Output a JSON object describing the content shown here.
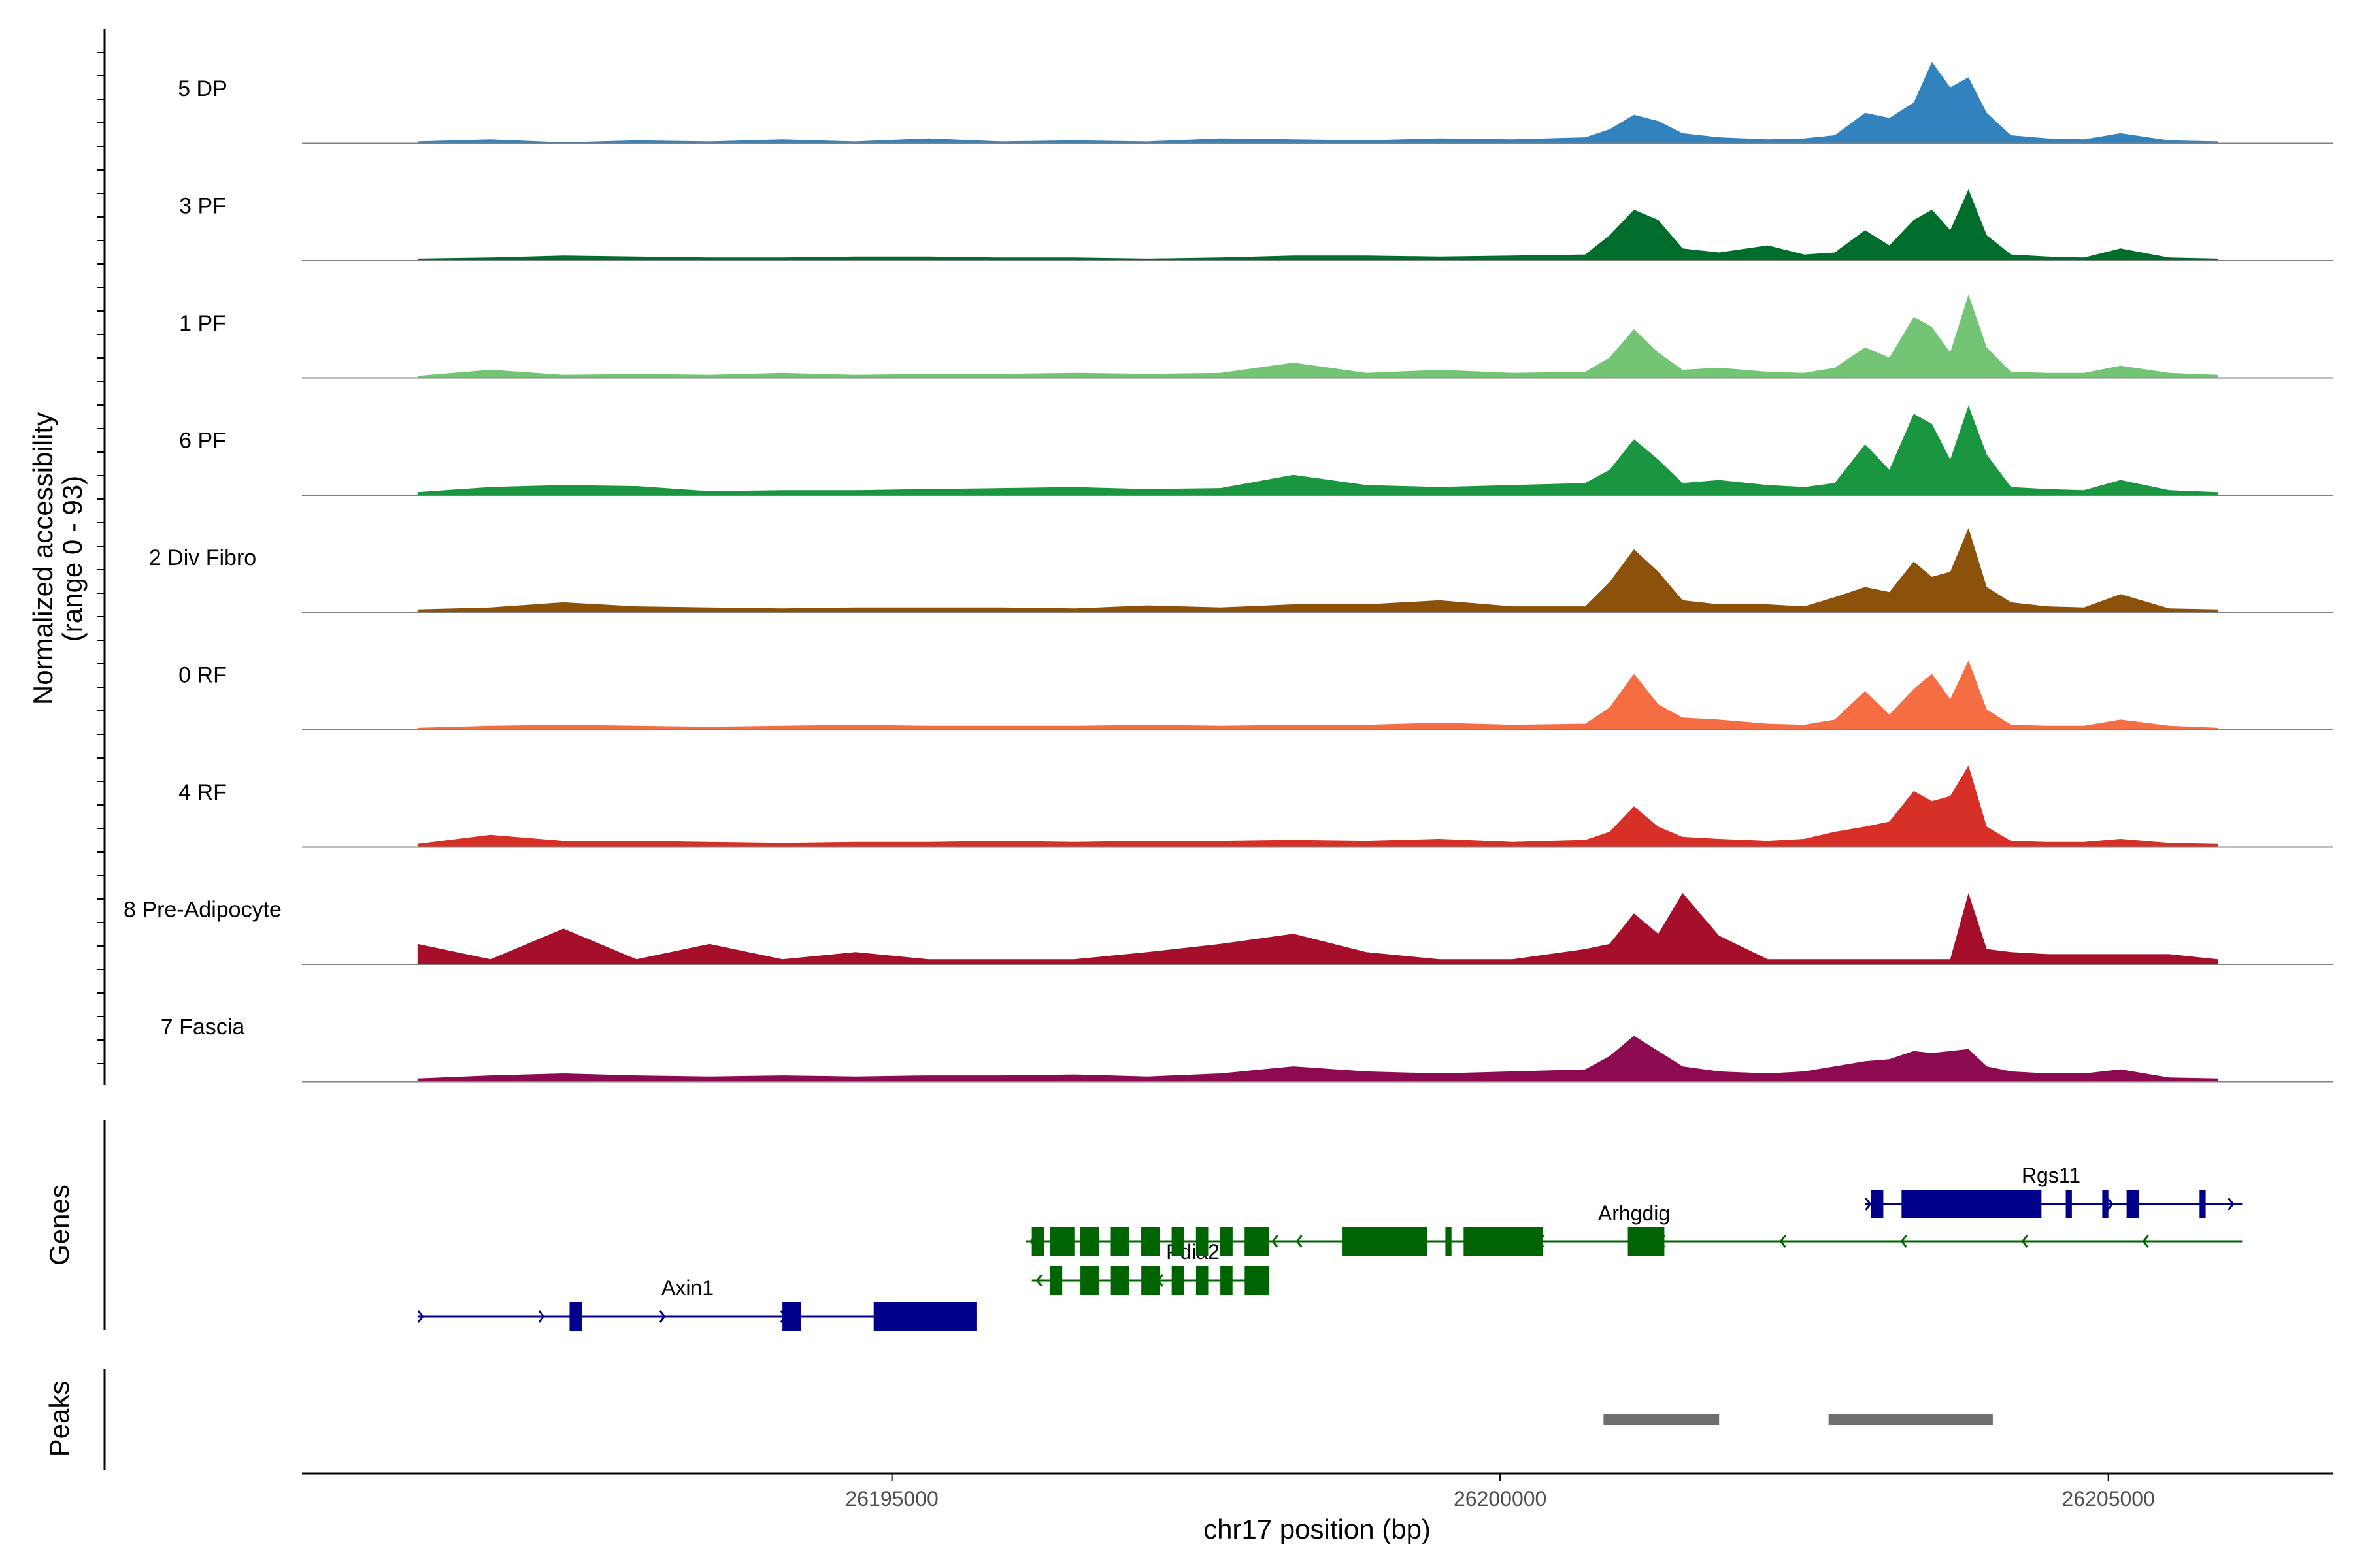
{
  "chart_data": {
    "type": "area",
    "title": "",
    "xlabel": "chr17 position (bp)",
    "ylabel": "Normalized accessibility\n(range 0 - 93)",
    "ylabel_line1": "Normalized accessibility",
    "ylabel_line2": "(range 0 - 93)",
    "ylim": [
      0,
      93
    ],
    "xlim": [
      26190150,
      26206850
    ],
    "x_ticks": [
      26195000,
      26200000,
      26205000
    ],
    "x_tick_labels": [
      "26195000",
      "26200000",
      "26205000"
    ],
    "x_profile": [
      26191100,
      26191700,
      26192300,
      26192900,
      26193500,
      26194100,
      26194700,
      26195300,
      26195900,
      26196500,
      26197100,
      26197700,
      26198300,
      26198900,
      26199500,
      26200100,
      26200700,
      26200900,
      26201100,
      26201300,
      26201500,
      26201800,
      26202200,
      26202500,
      26202750,
      26203000,
      26203200,
      26203400,
      26203550,
      26203700,
      26203850,
      26204000,
      26204200,
      26204500,
      26204800,
      26205100,
      26205500,
      26205900
    ],
    "series": [
      {
        "name": "5 DP",
        "color": "#3182bd",
        "values": [
          2,
          4,
          1,
          3,
          2,
          4,
          2,
          5,
          2,
          3,
          2,
          5,
          4,
          3,
          5,
          4,
          6,
          14,
          28,
          22,
          10,
          6,
          4,
          5,
          8,
          30,
          25,
          40,
          80,
          55,
          65,
          30,
          8,
          5,
          4,
          10,
          3,
          2
        ]
      },
      {
        "name": "3 PF",
        "color": "#006d2c",
        "values": [
          2,
          3,
          5,
          4,
          3,
          3,
          4,
          4,
          3,
          3,
          2,
          3,
          5,
          5,
          4,
          5,
          6,
          25,
          50,
          40,
          12,
          8,
          15,
          6,
          8,
          30,
          15,
          40,
          50,
          30,
          70,
          25,
          6,
          4,
          3,
          12,
          3,
          2
        ]
      },
      {
        "name": "1 PF",
        "color": "#74c476",
        "values": [
          2,
          8,
          3,
          4,
          3,
          5,
          3,
          4,
          4,
          5,
          4,
          5,
          15,
          5,
          8,
          5,
          6,
          20,
          48,
          25,
          8,
          10,
          6,
          5,
          10,
          30,
          20,
          60,
          50,
          25,
          82,
          30,
          6,
          5,
          5,
          12,
          5,
          3
        ]
      },
      {
        "name": "6 PF",
        "color": "#1a9641",
        "values": [
          3,
          8,
          10,
          9,
          4,
          5,
          5,
          6,
          7,
          8,
          6,
          7,
          20,
          10,
          8,
          10,
          12,
          25,
          55,
          35,
          12,
          15,
          10,
          8,
          12,
          50,
          25,
          80,
          70,
          35,
          88,
          40,
          8,
          6,
          5,
          15,
          5,
          3
        ]
      },
      {
        "name": "2 Div Fibro",
        "color": "#8c510a",
        "values": [
          3,
          5,
          10,
          6,
          5,
          4,
          5,
          5,
          5,
          4,
          7,
          5,
          8,
          8,
          12,
          6,
          6,
          30,
          62,
          40,
          12,
          8,
          8,
          6,
          15,
          25,
          20,
          50,
          35,
          40,
          83,
          25,
          10,
          6,
          5,
          18,
          4,
          3
        ]
      },
      {
        "name": "0 RF",
        "color": "#f46d43",
        "values": [
          2,
          4,
          5,
          4,
          3,
          4,
          5,
          4,
          4,
          4,
          5,
          4,
          5,
          5,
          7,
          5,
          6,
          22,
          55,
          25,
          12,
          10,
          6,
          5,
          10,
          38,
          15,
          40,
          55,
          30,
          68,
          20,
          5,
          4,
          4,
          10,
          4,
          2
        ]
      },
      {
        "name": "4 RF",
        "color": "#d73027",
        "values": [
          3,
          12,
          6,
          6,
          5,
          4,
          5,
          5,
          6,
          5,
          6,
          6,
          7,
          6,
          8,
          5,
          7,
          15,
          40,
          20,
          10,
          8,
          6,
          8,
          15,
          20,
          25,
          55,
          45,
          50,
          80,
          20,
          6,
          5,
          5,
          8,
          4,
          3
        ]
      },
      {
        "name": "8 Pre-Adipocyte",
        "color": "#a50f2a",
        "values": [
          20,
          5,
          35,
          5,
          20,
          5,
          12,
          5,
          5,
          5,
          12,
          20,
          30,
          12,
          5,
          5,
          15,
          20,
          50,
          30,
          70,
          28,
          5,
          5,
          5,
          5,
          5,
          5,
          5,
          5,
          70,
          15,
          12,
          10,
          10,
          10,
          10,
          5
        ]
      },
      {
        "name": "7 Fascia",
        "color": "#8c0a50",
        "values": [
          3,
          6,
          8,
          6,
          5,
          6,
          5,
          6,
          6,
          7,
          5,
          8,
          15,
          10,
          8,
          10,
          12,
          25,
          45,
          30,
          15,
          10,
          8,
          10,
          15,
          20,
          22,
          30,
          28,
          30,
          32,
          15,
          10,
          8,
          8,
          12,
          4,
          3
        ]
      }
    ],
    "genes": [
      {
        "name": "Axin1",
        "strand": "+",
        "color": "#00008b",
        "start": 26191100,
        "end": 26195700,
        "exons": [
          [
            26192350,
            26192450
          ],
          [
            26194100,
            26194250
          ],
          [
            26194850,
            26195700
          ]
        ]
      },
      {
        "name": "Pdia2",
        "strand": "-",
        "color": "#006400",
        "start": 26196150,
        "end": 26198100,
        "exons": [
          [
            26196300,
            26196400
          ],
          [
            26196550,
            26196700
          ],
          [
            26196800,
            26196950
          ],
          [
            26197050,
            26197200
          ],
          [
            26197300,
            26197400
          ],
          [
            26197500,
            26197600
          ],
          [
            26197700,
            26197800
          ],
          [
            26197900,
            26198100
          ]
        ]
      },
      {
        "name": "Pdia2",
        "strand": "-",
        "color": "#006400",
        "start": 26196100,
        "end": 26198950,
        "exons": [
          [
            26196150,
            26196250
          ],
          [
            26196350,
            26196500
          ],
          [
            26196550,
            26196700
          ],
          [
            26196800,
            26196950
          ],
          [
            26197050,
            26197200
          ],
          [
            26197300,
            26197400
          ],
          [
            26197500,
            26197600
          ],
          [
            26197700,
            26197800
          ],
          [
            26197900,
            26198100
          ],
          [
            26198700,
            26198950
          ]
        ]
      },
      {
        "name": "Arhgdig",
        "strand": "-",
        "color": "#006400",
        "start": 26196300,
        "end": 26206100,
        "exons": [
          [
            26196300,
            26196400
          ],
          [
            26196550,
            26196700
          ],
          [
            26196800,
            26196950
          ],
          [
            26197050,
            26197200
          ],
          [
            26197300,
            26197400
          ],
          [
            26197500,
            26197600
          ],
          [
            26197700,
            26197800
          ],
          [
            26197900,
            26198100
          ],
          [
            26198700,
            26199400
          ],
          [
            26199550,
            26199600
          ],
          [
            26199700,
            26200350
          ],
          [
            26201050,
            26201350
          ]
        ]
      },
      {
        "name": "Rgs11",
        "strand": "+",
        "color": "#00008b",
        "start": 26203000,
        "end": 26206100,
        "exons": [
          [
            26203050,
            26203150
          ],
          [
            26203300,
            26204450
          ],
          [
            26204650,
            26204700
          ],
          [
            26204950,
            26205000
          ],
          [
            26205150,
            26205250
          ],
          [
            26205750,
            26205800
          ]
        ]
      }
    ],
    "peaks": [
      [
        26200850,
        26201800
      ],
      [
        26202700,
        26204050
      ]
    ],
    "panels": [
      "Normalized accessibility",
      "Genes",
      "Peaks"
    ]
  }
}
